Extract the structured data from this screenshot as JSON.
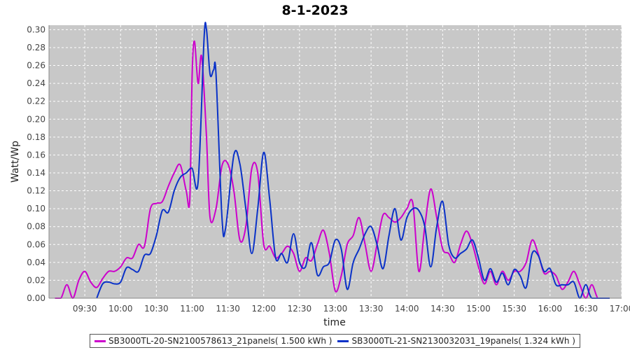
{
  "chart_data": {
    "type": "line",
    "title": "8-1-2023",
    "xlabel": "time",
    "ylabel": "Watt/Wp",
    "xlim": [
      "09:00",
      "17:00"
    ],
    "ylim": [
      0,
      0.305
    ],
    "x_ticks": [
      "09:30",
      "10:00",
      "10:30",
      "11:00",
      "11:30",
      "12:00",
      "12:30",
      "13:00",
      "13:30",
      "14:00",
      "14:30",
      "15:00",
      "15:30",
      "16:00",
      "16:30",
      "17:00"
    ],
    "y_ticks": [
      "0.00",
      "0.02",
      "0.04",
      "0.06",
      "0.08",
      "0.10",
      "0.12",
      "0.14",
      "0.16",
      "0.18",
      "0.20",
      "0.22",
      "0.24",
      "0.26",
      "0.28",
      "0.30"
    ],
    "grid": true,
    "legend_position": "bottom",
    "series": [
      {
        "name": "SB3000TL-20-SN2100578613_21panels( 1.500 kWh )",
        "color": "#cc00cc",
        "points": [
          [
            "09:05",
            0.0
          ],
          [
            "09:10",
            0.0
          ],
          [
            "09:15",
            0.015
          ],
          [
            "09:20",
            0.0
          ],
          [
            "09:25",
            0.02
          ],
          [
            "09:30",
            0.03
          ],
          [
            "09:35",
            0.018
          ],
          [
            "09:40",
            0.012
          ],
          [
            "09:45",
            0.022
          ],
          [
            "09:50",
            0.03
          ],
          [
            "09:55",
            0.03
          ],
          [
            "10:00",
            0.035
          ],
          [
            "10:05",
            0.045
          ],
          [
            "10:10",
            0.045
          ],
          [
            "10:15",
            0.06
          ],
          [
            "10:20",
            0.058
          ],
          [
            "10:25",
            0.1
          ],
          [
            "10:30",
            0.106
          ],
          [
            "10:35",
            0.108
          ],
          [
            "10:40",
            0.125
          ],
          [
            "10:45",
            0.14
          ],
          [
            "10:50",
            0.149
          ],
          [
            "10:55",
            0.12
          ],
          [
            "10:58",
            0.11
          ],
          [
            "11:00",
            0.25
          ],
          [
            "11:02",
            0.287
          ],
          [
            "11:05",
            0.24
          ],
          [
            "11:08",
            0.27
          ],
          [
            "11:12",
            0.18
          ],
          [
            "11:15",
            0.09
          ],
          [
            "11:20",
            0.1
          ],
          [
            "11:25",
            0.148
          ],
          [
            "11:30",
            0.15
          ],
          [
            "11:35",
            0.12
          ],
          [
            "11:40",
            0.065
          ],
          [
            "11:45",
            0.08
          ],
          [
            "11:50",
            0.145
          ],
          [
            "11:55",
            0.14
          ],
          [
            "12:00",
            0.06
          ],
          [
            "12:05",
            0.058
          ],
          [
            "12:10",
            0.045
          ],
          [
            "12:15",
            0.05
          ],
          [
            "12:20",
            0.058
          ],
          [
            "12:25",
            0.05
          ],
          [
            "12:30",
            0.03
          ],
          [
            "12:35",
            0.045
          ],
          [
            "12:40",
            0.042
          ],
          [
            "12:45",
            0.06
          ],
          [
            "12:50",
            0.076
          ],
          [
            "12:55",
            0.05
          ],
          [
            "13:00",
            0.008
          ],
          [
            "13:05",
            0.025
          ],
          [
            "13:10",
            0.06
          ],
          [
            "13:15",
            0.07
          ],
          [
            "13:20",
            0.09
          ],
          [
            "13:25",
            0.06
          ],
          [
            "13:30",
            0.03
          ],
          [
            "13:35",
            0.06
          ],
          [
            "13:40",
            0.093
          ],
          [
            "13:45",
            0.09
          ],
          [
            "13:50",
            0.085
          ],
          [
            "13:55",
            0.09
          ],
          [
            "14:00",
            0.1
          ],
          [
            "14:05",
            0.106
          ],
          [
            "14:10",
            0.03
          ],
          [
            "14:15",
            0.08
          ],
          [
            "14:20",
            0.122
          ],
          [
            "14:25",
            0.09
          ],
          [
            "14:30",
            0.055
          ],
          [
            "14:35",
            0.05
          ],
          [
            "14:40",
            0.04
          ],
          [
            "14:45",
            0.06
          ],
          [
            "14:50",
            0.075
          ],
          [
            "14:55",
            0.06
          ],
          [
            "15:00",
            0.035
          ],
          [
            "15:05",
            0.016
          ],
          [
            "15:10",
            0.03
          ],
          [
            "15:15",
            0.015
          ],
          [
            "15:20",
            0.03
          ],
          [
            "15:25",
            0.02
          ],
          [
            "15:30",
            0.03
          ],
          [
            "15:35",
            0.03
          ],
          [
            "15:40",
            0.04
          ],
          [
            "15:45",
            0.065
          ],
          [
            "15:50",
            0.05
          ],
          [
            "15:55",
            0.028
          ],
          [
            "16:00",
            0.03
          ],
          [
            "16:05",
            0.025
          ],
          [
            "16:10",
            0.01
          ],
          [
            "16:15",
            0.018
          ],
          [
            "16:20",
            0.03
          ],
          [
            "16:25",
            0.015
          ],
          [
            "16:30",
            0.0
          ],
          [
            "16:35",
            0.015
          ],
          [
            "16:40",
            0.0
          ],
          [
            "16:45",
            0.0
          ]
        ]
      },
      {
        "name": "SB3000TL-21-SN2130032031_19panels( 1.324 kWh )",
        "color": "#0a32c8",
        "points": [
          [
            "09:40",
            0.0
          ],
          [
            "09:45",
            0.016
          ],
          [
            "09:50",
            0.018
          ],
          [
            "09:55",
            0.016
          ],
          [
            "10:00",
            0.018
          ],
          [
            "10:05",
            0.034
          ],
          [
            "10:10",
            0.032
          ],
          [
            "10:15",
            0.03
          ],
          [
            "10:20",
            0.048
          ],
          [
            "10:25",
            0.05
          ],
          [
            "10:30",
            0.07
          ],
          [
            "10:35",
            0.098
          ],
          [
            "10:40",
            0.096
          ],
          [
            "10:45",
            0.12
          ],
          [
            "10:50",
            0.135
          ],
          [
            "10:55",
            0.14
          ],
          [
            "11:00",
            0.145
          ],
          [
            "11:05",
            0.13
          ],
          [
            "11:10",
            0.29
          ],
          [
            "11:12",
            0.3
          ],
          [
            "11:15",
            0.25
          ],
          [
            "11:18",
            0.255
          ],
          [
            "11:20",
            0.25
          ],
          [
            "11:25",
            0.09
          ],
          [
            "11:28",
            0.078
          ],
          [
            "11:35",
            0.16
          ],
          [
            "11:40",
            0.15
          ],
          [
            "11:45",
            0.1
          ],
          [
            "11:50",
            0.05
          ],
          [
            "11:55",
            0.1
          ],
          [
            "12:00",
            0.163
          ],
          [
            "12:05",
            0.11
          ],
          [
            "12:10",
            0.045
          ],
          [
            "12:15",
            0.05
          ],
          [
            "12:20",
            0.04
          ],
          [
            "12:25",
            0.072
          ],
          [
            "12:30",
            0.04
          ],
          [
            "12:35",
            0.035
          ],
          [
            "12:40",
            0.062
          ],
          [
            "12:45",
            0.026
          ],
          [
            "12:50",
            0.035
          ],
          [
            "12:55",
            0.04
          ],
          [
            "13:00",
            0.065
          ],
          [
            "13:05",
            0.055
          ],
          [
            "13:10",
            0.01
          ],
          [
            "13:15",
            0.04
          ],
          [
            "13:20",
            0.055
          ],
          [
            "13:25",
            0.072
          ],
          [
            "13:30",
            0.08
          ],
          [
            "13:35",
            0.06
          ],
          [
            "13:40",
            0.033
          ],
          [
            "13:45",
            0.07
          ],
          [
            "13:50",
            0.1
          ],
          [
            "13:55",
            0.065
          ],
          [
            "14:00",
            0.09
          ],
          [
            "14:05",
            0.1
          ],
          [
            "14:10",
            0.098
          ],
          [
            "14:15",
            0.08
          ],
          [
            "14:20",
            0.035
          ],
          [
            "14:25",
            0.08
          ],
          [
            "14:30",
            0.108
          ],
          [
            "14:35",
            0.06
          ],
          [
            "14:40",
            0.045
          ],
          [
            "14:45",
            0.05
          ],
          [
            "14:50",
            0.055
          ],
          [
            "14:55",
            0.065
          ],
          [
            "15:00",
            0.045
          ],
          [
            "15:05",
            0.02
          ],
          [
            "15:10",
            0.033
          ],
          [
            "15:15",
            0.018
          ],
          [
            "15:20",
            0.028
          ],
          [
            "15:25",
            0.015
          ],
          [
            "15:30",
            0.032
          ],
          [
            "15:35",
            0.025
          ],
          [
            "15:40",
            0.012
          ],
          [
            "15:45",
            0.05
          ],
          [
            "15:50",
            0.048
          ],
          [
            "15:55",
            0.03
          ],
          [
            "16:00",
            0.033
          ],
          [
            "16:05",
            0.015
          ],
          [
            "16:10",
            0.015
          ],
          [
            "16:15",
            0.015
          ],
          [
            "16:20",
            0.018
          ],
          [
            "16:25",
            0.0
          ],
          [
            "16:30",
            0.015
          ],
          [
            "16:35",
            0.0
          ],
          [
            "16:45",
            0.0
          ],
          [
            "16:50",
            0.0
          ]
        ]
      }
    ]
  }
}
